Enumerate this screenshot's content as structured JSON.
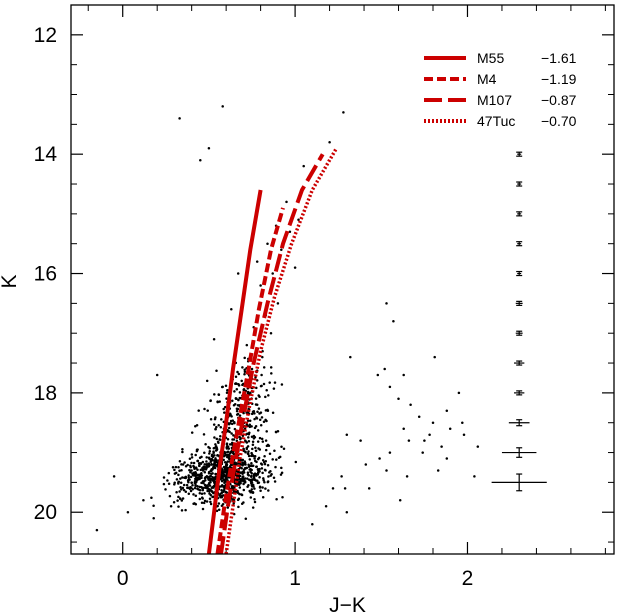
{
  "chart_data": {
    "type": "scatter",
    "xlabel": "J−K",
    "ylabel": "K",
    "xlim": [
      -0.3,
      2.85
    ],
    "ylim": [
      20.7,
      11.5
    ],
    "y_inverted": true,
    "xticks": [
      {
        "value": 0,
        "label": "0"
      },
      {
        "value": 1,
        "label": "1"
      },
      {
        "value": 2,
        "label": "2"
      }
    ],
    "yticks": [
      {
        "value": 12,
        "label": "12"
      },
      {
        "value": 14,
        "label": "14"
      },
      {
        "value": 16,
        "label": "16"
      },
      {
        "value": 18,
        "label": "18"
      },
      {
        "value": 20,
        "label": "20"
      }
    ],
    "x_minor_step": 0.2,
    "y_minor_step": 0.5,
    "legend_placement": "top-right",
    "line_color": "#cc0000",
    "series": [
      {
        "name": "M55",
        "feh": "−1.61",
        "dash": "solid",
        "points": [
          [
            0.5,
            20.7
          ],
          [
            0.53,
            20.0
          ],
          [
            0.56,
            19.3
          ],
          [
            0.6,
            18.5
          ],
          [
            0.64,
            17.6
          ],
          [
            0.69,
            16.6
          ],
          [
            0.74,
            15.6
          ],
          [
            0.8,
            14.6
          ]
        ]
      },
      {
        "name": "M4",
        "feh": "−1.19",
        "dash": "short-dash",
        "points": [
          [
            0.55,
            20.7
          ],
          [
            0.59,
            19.9
          ],
          [
            0.63,
            19.2
          ],
          [
            0.68,
            18.4
          ],
          [
            0.73,
            17.6
          ],
          [
            0.79,
            16.6
          ],
          [
            0.86,
            15.6
          ],
          [
            0.93,
            14.9
          ]
        ]
      },
      {
        "name": "M107",
        "feh": "−0.87",
        "dash": "long-dash",
        "points": [
          [
            0.57,
            20.7
          ],
          [
            0.61,
            19.9
          ],
          [
            0.65,
            19.2
          ],
          [
            0.7,
            18.4
          ],
          [
            0.76,
            17.5
          ],
          [
            0.84,
            16.5
          ],
          [
            0.93,
            15.5
          ],
          [
            1.04,
            14.6
          ],
          [
            1.16,
            14.0
          ]
        ]
      },
      {
        "name": "47Tuc",
        "feh": "−0.70",
        "dash": "dotted",
        "points": [
          [
            0.6,
            20.7
          ],
          [
            0.64,
            19.9
          ],
          [
            0.68,
            19.1
          ],
          [
            0.73,
            18.3
          ],
          [
            0.8,
            17.3
          ],
          [
            0.88,
            16.4
          ],
          [
            0.98,
            15.5
          ],
          [
            1.1,
            14.6
          ],
          [
            1.24,
            13.9
          ]
        ]
      }
    ],
    "error_bars": [
      {
        "x": 2.3,
        "y": 14.0,
        "xerr": 0.01,
        "yerr": 0.02
      },
      {
        "x": 2.3,
        "y": 14.5,
        "xerr": 0.01,
        "yerr": 0.02
      },
      {
        "x": 2.3,
        "y": 15.0,
        "xerr": 0.01,
        "yerr": 0.02
      },
      {
        "x": 2.3,
        "y": 15.5,
        "xerr": 0.01,
        "yerr": 0.02
      },
      {
        "x": 2.3,
        "y": 16.0,
        "xerr": 0.01,
        "yerr": 0.02
      },
      {
        "x": 2.3,
        "y": 16.5,
        "xerr": 0.02,
        "yerr": 0.02
      },
      {
        "x": 2.3,
        "y": 17.0,
        "xerr": 0.02,
        "yerr": 0.02
      },
      {
        "x": 2.3,
        "y": 17.5,
        "xerr": 0.03,
        "yerr": 0.03
      },
      {
        "x": 2.3,
        "y": 18.0,
        "xerr": 0.03,
        "yerr": 0.03
      },
      {
        "x": 2.3,
        "y": 18.5,
        "xerr": 0.06,
        "yerr": 0.05
      },
      {
        "x": 2.3,
        "y": 19.0,
        "xerr": 0.1,
        "yerr": 0.08
      },
      {
        "x": 2.3,
        "y": 19.5,
        "xerr": 0.16,
        "yerr": 0.14
      }
    ],
    "scatter_points": [
      [
        0.33,
        13.4
      ],
      [
        0.58,
        13.2
      ],
      [
        0.45,
        14.1
      ],
      [
        0.5,
        13.9
      ],
      [
        1.28,
        13.3
      ],
      [
        1.2,
        13.8
      ],
      [
        1.05,
        14.2
      ],
      [
        0.95,
        14.8
      ],
      [
        0.89,
        15.2
      ],
      [
        0.92,
        15.6
      ],
      [
        0.78,
        15.8
      ],
      [
        0.84,
        15.5
      ],
      [
        0.87,
        16.0
      ],
      [
        0.8,
        16.2
      ],
      [
        0.83,
        16.7
      ],
      [
        0.76,
        16.9
      ],
      [
        0.72,
        17.2
      ],
      [
        0.86,
        17.0
      ],
      [
        0.9,
        16.5
      ],
      [
        1.0,
        15.9
      ],
      [
        0.97,
        15.3
      ],
      [
        1.02,
        15.1
      ],
      [
        0.75,
        17.6
      ],
      [
        0.69,
        17.8
      ],
      [
        0.81,
        17.4
      ],
      [
        0.66,
        18.1
      ],
      [
        0.78,
        18.2
      ],
      [
        0.71,
        18.6
      ],
      [
        0.61,
        18.3
      ],
      [
        0.2,
        17.7
      ],
      [
        0.49,
        17.8
      ],
      [
        0.53,
        17.1
      ],
      [
        0.63,
        16.6
      ],
      [
        0.67,
        16.0
      ],
      [
        0.58,
        17.9
      ],
      [
        1.53,
        16.5
      ],
      [
        1.57,
        16.8
      ],
      [
        1.32,
        17.4
      ],
      [
        1.48,
        17.7
      ],
      [
        1.52,
        17.6
      ],
      [
        1.63,
        17.7
      ],
      [
        1.81,
        17.4
      ],
      [
        1.55,
        17.9
      ],
      [
        1.6,
        18.1
      ],
      [
        1.67,
        18.2
      ],
      [
        1.72,
        18.4
      ],
      [
        1.95,
        18.0
      ],
      [
        1.88,
        18.3
      ],
      [
        1.8,
        18.5
      ],
      [
        1.63,
        18.6
      ],
      [
        1.66,
        18.8
      ],
      [
        1.75,
        18.8
      ],
      [
        1.85,
        18.9
      ],
      [
        1.78,
        18.7
      ],
      [
        1.9,
        18.6
      ],
      [
        1.97,
        18.5
      ],
      [
        1.55,
        19.0
      ],
      [
        1.49,
        19.1
      ],
      [
        1.74,
        19.0
      ],
      [
        1.88,
        19.1
      ],
      [
        1.83,
        19.3
      ],
      [
        1.65,
        19.4
      ],
      [
        1.38,
        18.8
      ],
      [
        1.3,
        18.7
      ],
      [
        1.27,
        19.4
      ],
      [
        1.29,
        19.6
      ],
      [
        1.43,
        19.6
      ],
      [
        1.41,
        19.2
      ],
      [
        1.53,
        19.3
      ],
      [
        1.61,
        19.8
      ],
      [
        1.22,
        19.6
      ],
      [
        2.04,
        19.4
      ],
      [
        2.06,
        18.9
      ],
      [
        1.98,
        18.7
      ],
      [
        -0.15,
        20.3
      ],
      [
        0.03,
        20.0
      ],
      [
        -0.05,
        19.4
      ],
      [
        0.18,
        20.1
      ],
      [
        0.12,
        19.8
      ],
      [
        1.3,
        20.0
      ],
      [
        1.18,
        19.9
      ],
      [
        1.1,
        20.2
      ]
    ]
  }
}
